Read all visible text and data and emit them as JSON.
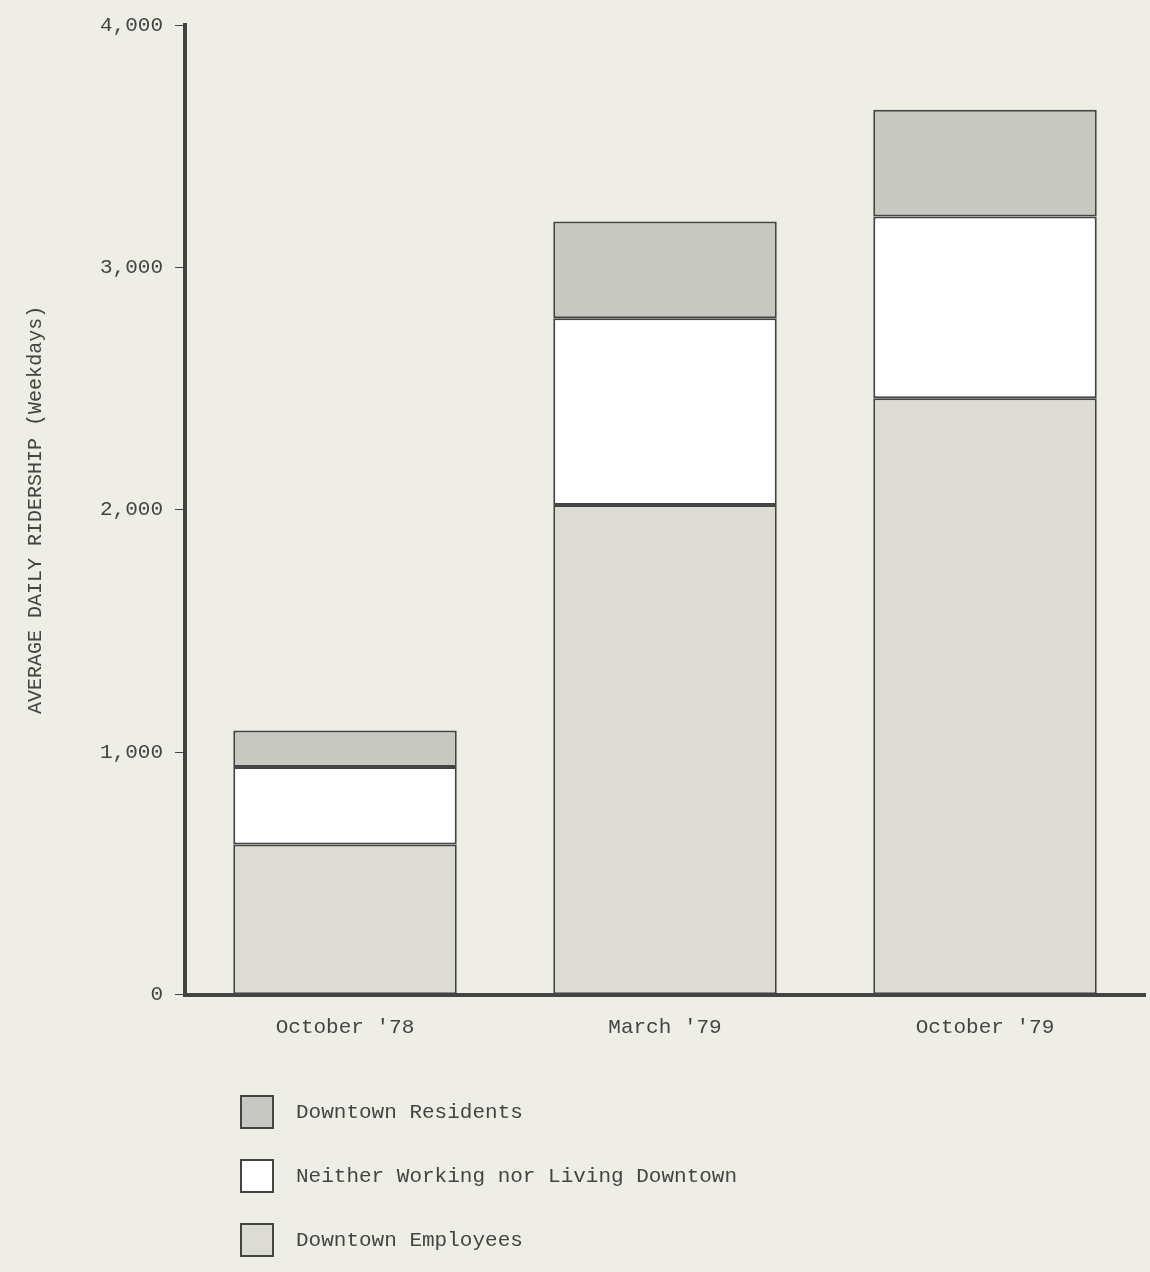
{
  "chart_data": {
    "type": "bar",
    "stacked": true,
    "ylabel": "AVERAGE DAILY RIDERSHIP (Weekdays)",
    "categories": [
      "October '78",
      "March '79",
      "October '79"
    ],
    "series": [
      {
        "name": "Downtown Employees",
        "color": "#dcdcd4",
        "values": [
          620,
          2020,
          2460
        ]
      },
      {
        "name": "Neither Working nor Living Downtown",
        "color": "#ffffff",
        "values": [
          320,
          770,
          750
        ]
      },
      {
        "name": "Downtown Residents",
        "color": "#c8c8c3",
        "values": [
          150,
          400,
          440
        ]
      }
    ],
    "ylim": [
      0,
      4000
    ],
    "yticks": [
      {
        "value": 0,
        "label": "0"
      },
      {
        "value": 1000,
        "label": "1,000"
      },
      {
        "value": 2000,
        "label": "2,000"
      },
      {
        "value": 3000,
        "label": "3,000"
      },
      {
        "value": 4000,
        "label": "4,000"
      }
    ],
    "grid": false,
    "legend": "bottom left"
  }
}
